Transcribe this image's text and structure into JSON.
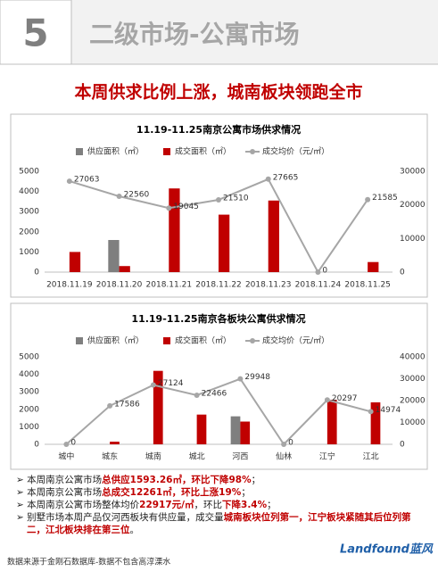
{
  "header": {
    "number": "5",
    "title": "二级市场-公寓市场",
    "headline": "本周供求比例上涨，城南板块领跑全市"
  },
  "chart_data": [
    {
      "type": "bar-line",
      "title": "11.19-11.25南京公寓市场供求情况",
      "categories": [
        "2018.11.19",
        "2018.11.20",
        "2018.11.21",
        "2018.11.22",
        "2018.11.23",
        "2018.11.24",
        "2018.11.25"
      ],
      "series": [
        {
          "name": "供应面积（㎡）",
          "color": "#7f7f7f",
          "type": "bar",
          "values": [
            0,
            1593,
            0,
            0,
            0,
            0,
            0
          ]
        },
        {
          "name": "成交面积（㎡）",
          "color": "#c00000",
          "type": "bar",
          "values": [
            1000,
            300,
            4150,
            2850,
            3550,
            0,
            500
          ]
        },
        {
          "name": "成交均价（元/㎡）",
          "color": "#a6a6a6",
          "type": "line",
          "axis": "y2",
          "values": [
            27063,
            22560,
            19045,
            21510,
            27665,
            0,
            21585
          ]
        }
      ],
      "ylim": [
        0,
        5000
      ],
      "yticks": [
        0,
        1000,
        2000,
        3000,
        4000,
        5000
      ],
      "y2lim": [
        0,
        30000
      ],
      "y2ticks": [
        0,
        10000,
        20000,
        30000
      ],
      "legend": "top"
    },
    {
      "type": "bar-line",
      "title": "11.19-11.25南京各板块公寓供求情况",
      "categories": [
        "城中",
        "城东",
        "城南",
        "城北",
        "河西",
        "仙林",
        "江宁",
        "江北"
      ],
      "series": [
        {
          "name": "供应面积（㎡）",
          "color": "#7f7f7f",
          "type": "bar",
          "values": [
            0,
            0,
            0,
            0,
            1600,
            0,
            0,
            0
          ]
        },
        {
          "name": "成交面积（㎡）",
          "color": "#c00000",
          "type": "bar",
          "values": [
            0,
            150,
            4200,
            1700,
            1300,
            0,
            2550,
            2400
          ]
        },
        {
          "name": "成交均价（元/㎡）",
          "color": "#a6a6a6",
          "type": "line",
          "axis": "y2",
          "values": [
            0,
            17586,
            27124,
            22466,
            29948,
            0,
            20297,
            14974
          ]
        }
      ],
      "ylim": [
        0,
        5000
      ],
      "yticks": [
        0,
        1000,
        2000,
        3000,
        4000,
        5000
      ],
      "y2lim": [
        0,
        40000
      ],
      "y2ticks": [
        0,
        10000,
        20000,
        30000,
        40000
      ],
      "legend": "top"
    }
  ],
  "bullets": [
    [
      {
        "text": "本周南京公寓市场",
        "emphasis": false
      },
      {
        "text": "总供应1593.26㎡，环比下降98%",
        "emphasis": true
      },
      {
        "text": "；",
        "emphasis": false
      }
    ],
    [
      {
        "text": "本周南京公寓市场",
        "emphasis": false
      },
      {
        "text": "总成交12261㎡，环比上涨19%",
        "emphasis": true
      },
      {
        "text": "；",
        "emphasis": false
      }
    ],
    [
      {
        "text": "本周南京公寓市场整体均价",
        "emphasis": false
      },
      {
        "text": "22917元/㎡",
        "emphasis": true
      },
      {
        "text": "，环比",
        "emphasis": false
      },
      {
        "text": "下降3.4%",
        "emphasis": true
      },
      {
        "text": "；",
        "emphasis": false
      }
    ],
    [
      {
        "text": "别墅市场本周产品仅河西板块有供应量，成交量",
        "emphasis": false
      },
      {
        "text": "城南板块位列第一，江宁板块紧随其后位列第二，江北板块排在第三位",
        "emphasis": true
      },
      {
        "text": "。",
        "emphasis": false
      }
    ]
  ],
  "footer": "数据来源于金刚石数据库-数据不包含高淳溧水",
  "logo": "Landfound蓝风"
}
